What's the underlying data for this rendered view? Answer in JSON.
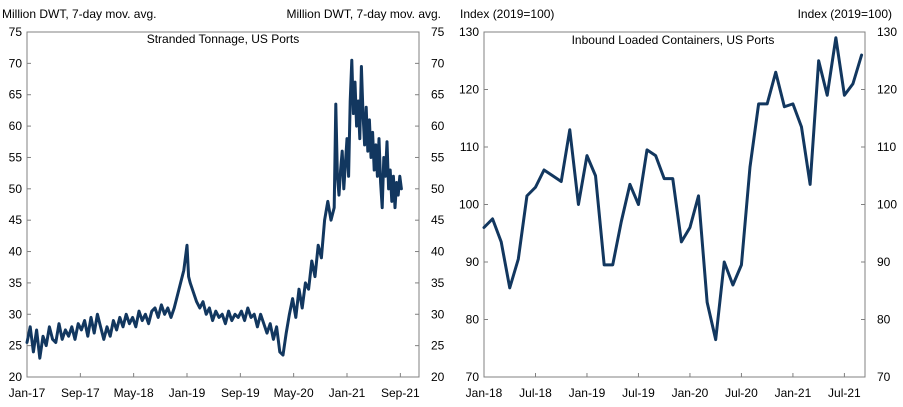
{
  "chart_data": [
    {
      "type": "line",
      "title": "Stranded Tonnage, US Ports",
      "ylabel_left": "Million DWT, 7-day mov. avg.",
      "ylabel_right": "Million DWT, 7-day mov. avg.",
      "ylim": [
        20,
        75
      ],
      "yticks": [
        20,
        25,
        30,
        35,
        40,
        45,
        50,
        55,
        60,
        65,
        70,
        75
      ],
      "xlim": [
        2017.0,
        2021.9
      ],
      "xtick_labels": [
        {
          "label": "Jan-17",
          "x": 2017.0
        },
        {
          "label": "Sep-17",
          "x": 2017.667
        },
        {
          "label": "May-18",
          "x": 2018.333
        },
        {
          "label": "Jan-19",
          "x": 2019.0
        },
        {
          "label": "Sep-19",
          "x": 2019.667
        },
        {
          "label": "May-20",
          "x": 2020.333
        },
        {
          "label": "Jan-21",
          "x": 2021.0
        },
        {
          "label": "Sep-21",
          "x": 2021.667
        }
      ],
      "color": "#12375f",
      "series": [
        {
          "name": "Stranded Tonnage",
          "points": [
            [
              2017.0,
              25.5
            ],
            [
              2017.04,
              28.0
            ],
            [
              2017.08,
              24.0
            ],
            [
              2017.12,
              27.5
            ],
            [
              2017.16,
              23.0
            ],
            [
              2017.2,
              26.5
            ],
            [
              2017.24,
              25.0
            ],
            [
              2017.28,
              28.0
            ],
            [
              2017.32,
              26.0
            ],
            [
              2017.36,
              25.5
            ],
            [
              2017.4,
              28.5
            ],
            [
              2017.44,
              26.0
            ],
            [
              2017.48,
              27.5
            ],
            [
              2017.52,
              26.5
            ],
            [
              2017.56,
              28.0
            ],
            [
              2017.6,
              26.0
            ],
            [
              2017.64,
              28.5
            ],
            [
              2017.68,
              27.5
            ],
            [
              2017.72,
              29.0
            ],
            [
              2017.76,
              26.5
            ],
            [
              2017.8,
              29.5
            ],
            [
              2017.84,
              27.0
            ],
            [
              2017.88,
              30.0
            ],
            [
              2017.92,
              28.0
            ],
            [
              2017.96,
              26.0
            ],
            [
              2018.0,
              28.0
            ],
            [
              2018.04,
              26.5
            ],
            [
              2018.08,
              29.0
            ],
            [
              2018.12,
              27.5
            ],
            [
              2018.16,
              29.5
            ],
            [
              2018.2,
              28.0
            ],
            [
              2018.24,
              30.0
            ],
            [
              2018.28,
              28.5
            ],
            [
              2018.32,
              29.5
            ],
            [
              2018.36,
              28.0
            ],
            [
              2018.4,
              30.5
            ],
            [
              2018.44,
              29.0
            ],
            [
              2018.48,
              30.0
            ],
            [
              2018.52,
              28.5
            ],
            [
              2018.56,
              30.5
            ],
            [
              2018.6,
              31.0
            ],
            [
              2018.64,
              29.5
            ],
            [
              2018.68,
              31.5
            ],
            [
              2018.72,
              30.0
            ],
            [
              2018.76,
              31.0
            ],
            [
              2018.8,
              29.5
            ],
            [
              2018.84,
              31.0
            ],
            [
              2018.88,
              33.0
            ],
            [
              2018.92,
              35.0
            ],
            [
              2018.96,
              37.0
            ],
            [
              2019.0,
              41.0
            ],
            [
              2019.02,
              36.0
            ],
            [
              2019.04,
              35.0
            ],
            [
              2019.08,
              33.5
            ],
            [
              2019.12,
              32.0
            ],
            [
              2019.16,
              31.0
            ],
            [
              2019.2,
              32.0
            ],
            [
              2019.24,
              30.0
            ],
            [
              2019.28,
              31.0
            ],
            [
              2019.32,
              29.0
            ],
            [
              2019.36,
              30.5
            ],
            [
              2019.4,
              29.5
            ],
            [
              2019.44,
              30.0
            ],
            [
              2019.48,
              28.5
            ],
            [
              2019.52,
              30.5
            ],
            [
              2019.56,
              29.0
            ],
            [
              2019.6,
              30.0
            ],
            [
              2019.64,
              29.5
            ],
            [
              2019.68,
              30.5
            ],
            [
              2019.72,
              29.0
            ],
            [
              2019.76,
              31.0
            ],
            [
              2019.8,
              29.5
            ],
            [
              2019.84,
              30.0
            ],
            [
              2019.88,
              28.0
            ],
            [
              2019.92,
              30.0
            ],
            [
              2019.96,
              28.5
            ],
            [
              2020.0,
              27.0
            ],
            [
              2020.04,
              28.5
            ],
            [
              2020.08,
              26.0
            ],
            [
              2020.12,
              28.0
            ],
            [
              2020.16,
              24.0
            ],
            [
              2020.2,
              23.5
            ],
            [
              2020.24,
              27.0
            ],
            [
              2020.28,
              30.0
            ],
            [
              2020.32,
              32.5
            ],
            [
              2020.36,
              29.5
            ],
            [
              2020.4,
              34.0
            ],
            [
              2020.44,
              31.0
            ],
            [
              2020.48,
              35.0
            ],
            [
              2020.52,
              34.0
            ],
            [
              2020.56,
              38.5
            ],
            [
              2020.6,
              36.0
            ],
            [
              2020.64,
              41.0
            ],
            [
              2020.68,
              39.0
            ],
            [
              2020.72,
              45.0
            ],
            [
              2020.76,
              48.0
            ],
            [
              2020.8,
              45.0
            ],
            [
              2020.84,
              47.0
            ],
            [
              2020.86,
              63.5
            ],
            [
              2020.88,
              52.0
            ],
            [
              2020.9,
              49.0
            ],
            [
              2020.92,
              53.0
            ],
            [
              2020.94,
              56.0
            ],
            [
              2020.96,
              50.0
            ],
            [
              2020.98,
              54.0
            ],
            [
              2021.0,
              58.0
            ],
            [
              2021.02,
              52.0
            ],
            [
              2021.04,
              64.0
            ],
            [
              2021.06,
              70.5
            ],
            [
              2021.08,
              62.0
            ],
            [
              2021.1,
              67.0
            ],
            [
              2021.12,
              60.0
            ],
            [
              2021.14,
              64.0
            ],
            [
              2021.16,
              58.0
            ],
            [
              2021.18,
              69.5
            ],
            [
              2021.2,
              62.0
            ],
            [
              2021.22,
              57.0
            ],
            [
              2021.24,
              63.0
            ],
            [
              2021.26,
              56.0
            ],
            [
              2021.28,
              61.0
            ],
            [
              2021.3,
              55.0
            ],
            [
              2021.32,
              59.0
            ],
            [
              2021.34,
              53.0
            ],
            [
              2021.36,
              57.0
            ],
            [
              2021.38,
              52.0
            ],
            [
              2021.4,
              58.0
            ],
            [
              2021.42,
              51.0
            ],
            [
              2021.44,
              47.0
            ],
            [
              2021.46,
              55.0
            ],
            [
              2021.48,
              52.0
            ],
            [
              2021.5,
              57.5
            ],
            [
              2021.52,
              50.0
            ],
            [
              2021.54,
              53.0
            ],
            [
              2021.56,
              48.0
            ],
            [
              2021.58,
              52.0
            ],
            [
              2021.6,
              47.0
            ],
            [
              2021.62,
              51.0
            ],
            [
              2021.64,
              49.0
            ],
            [
              2021.66,
              52.0
            ],
            [
              2021.68,
              50.0
            ]
          ]
        }
      ]
    },
    {
      "type": "line",
      "title": "Inbound Loaded Containers, US Ports",
      "ylabel_left": "Index (2019=100)",
      "ylabel_right": "Index (2019=100)",
      "ylim": [
        70,
        130
      ],
      "yticks": [
        70,
        80,
        90,
        100,
        110,
        120,
        130
      ],
      "xlim": [
        2018.0,
        2021.7
      ],
      "xtick_labels": [
        {
          "label": "Jan-18",
          "x": 2018.0
        },
        {
          "label": "Jul-18",
          "x": 2018.5
        },
        {
          "label": "Jan-19",
          "x": 2019.0
        },
        {
          "label": "Jul-19",
          "x": 2019.5
        },
        {
          "label": "Jan-20",
          "x": 2020.0
        },
        {
          "label": "Jul-20",
          "x": 2020.5
        },
        {
          "label": "Jan-21",
          "x": 2021.0
        },
        {
          "label": "Jul-21",
          "x": 2021.5
        }
      ],
      "color": "#12375f",
      "series": [
        {
          "name": "Inbound Loaded Containers",
          "points": [
            [
              2018.0,
              96.0
            ],
            [
              2018.083,
              97.5
            ],
            [
              2018.167,
              93.5
            ],
            [
              2018.25,
              85.5
            ],
            [
              2018.333,
              90.5
            ],
            [
              2018.417,
              101.5
            ],
            [
              2018.5,
              103.0
            ],
            [
              2018.583,
              106.0
            ],
            [
              2018.667,
              105.0
            ],
            [
              2018.75,
              104.0
            ],
            [
              2018.833,
              113.0
            ],
            [
              2018.917,
              100.0
            ],
            [
              2019.0,
              108.5
            ],
            [
              2019.083,
              105.0
            ],
            [
              2019.167,
              89.5
            ],
            [
              2019.25,
              89.5
            ],
            [
              2019.333,
              97.0
            ],
            [
              2019.417,
              103.5
            ],
            [
              2019.5,
              100.0
            ],
            [
              2019.583,
              109.5
            ],
            [
              2019.667,
              108.5
            ],
            [
              2019.75,
              104.5
            ],
            [
              2019.833,
              104.5
            ],
            [
              2019.917,
              93.5
            ],
            [
              2020.0,
              96.0
            ],
            [
              2020.083,
              101.5
            ],
            [
              2020.167,
              83.0
            ],
            [
              2020.25,
              76.5
            ],
            [
              2020.333,
              90.0
            ],
            [
              2020.417,
              86.0
            ],
            [
              2020.5,
              89.5
            ],
            [
              2020.583,
              106.5
            ],
            [
              2020.667,
              117.5
            ],
            [
              2020.75,
              117.5
            ],
            [
              2020.833,
              123.0
            ],
            [
              2020.917,
              117.0
            ],
            [
              2021.0,
              117.5
            ],
            [
              2021.083,
              113.5
            ],
            [
              2021.167,
              103.5
            ],
            [
              2021.25,
              125.0
            ],
            [
              2021.333,
              119.0
            ],
            [
              2021.417,
              129.0
            ],
            [
              2021.5,
              119.0
            ],
            [
              2021.583,
              121.0
            ],
            [
              2021.667,
              126.0
            ]
          ]
        }
      ]
    }
  ]
}
